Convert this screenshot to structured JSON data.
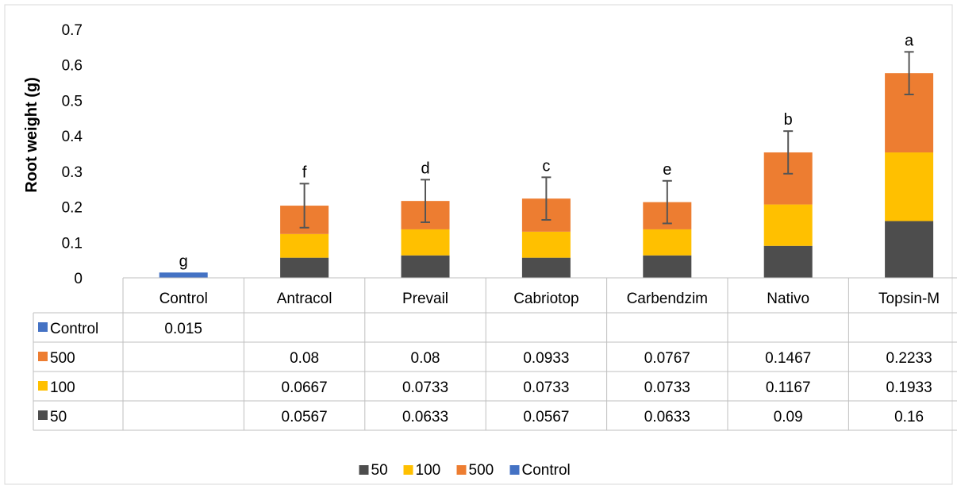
{
  "chart_data": {
    "type": "bar",
    "stacked": true,
    "ylabel": "Root weight (g)",
    "xlabel": "",
    "title": "",
    "ylim": [
      0,
      0.7
    ],
    "yticks": [
      "0",
      "0.1",
      "0.2",
      "0.3",
      "0.4",
      "0.5",
      "0.6",
      "0.7"
    ],
    "categories": [
      "Control",
      "Antracol",
      "Prevail",
      "Cabriotop",
      "Carbendzim",
      "Nativo",
      "Topsin-M"
    ],
    "series": [
      {
        "name": "50",
        "color": "#4d4d4d",
        "values": [
          null,
          0.0567,
          0.0633,
          0.0567,
          0.0633,
          0.09,
          0.16
        ]
      },
      {
        "name": "100",
        "color": "#ffc000",
        "values": [
          null,
          0.0667,
          0.0733,
          0.0733,
          0.0733,
          0.1167,
          0.1933
        ]
      },
      {
        "name": "500",
        "color": "#ed7d31",
        "values": [
          null,
          0.08,
          0.08,
          0.0933,
          0.0767,
          0.1467,
          0.2233
        ]
      },
      {
        "name": "Control",
        "color": "#4472c4",
        "values": [
          0.015,
          null,
          null,
          null,
          null,
          null,
          null
        ]
      }
    ],
    "table_rows": [
      {
        "series": "Control",
        "cells": [
          "0.015",
          "",
          "",
          "",
          "",
          "",
          ""
        ]
      },
      {
        "series": "500",
        "cells": [
          "",
          "0.08",
          "0.08",
          "0.0933",
          "0.0767",
          "0.1467",
          "0.2233"
        ]
      },
      {
        "series": "100",
        "cells": [
          "",
          "0.0667",
          "0.0733",
          "0.0733",
          "0.0733",
          "0.1167",
          "0.1933"
        ]
      },
      {
        "series": "50",
        "cells": [
          "",
          "0.0567",
          "0.0633",
          "0.0567",
          "0.0633",
          "0.09",
          "0.16"
        ]
      }
    ],
    "error_bars": [
      null,
      0.062,
      0.06,
      0.06,
      0.06,
      0.06,
      0.06
    ],
    "significance_letters": [
      "g",
      "f",
      "d",
      "c",
      "e",
      "b",
      "a"
    ],
    "legend": {
      "position": "bottom",
      "entries": [
        "50",
        "100",
        "500",
        "Control"
      ]
    },
    "grid": false
  }
}
